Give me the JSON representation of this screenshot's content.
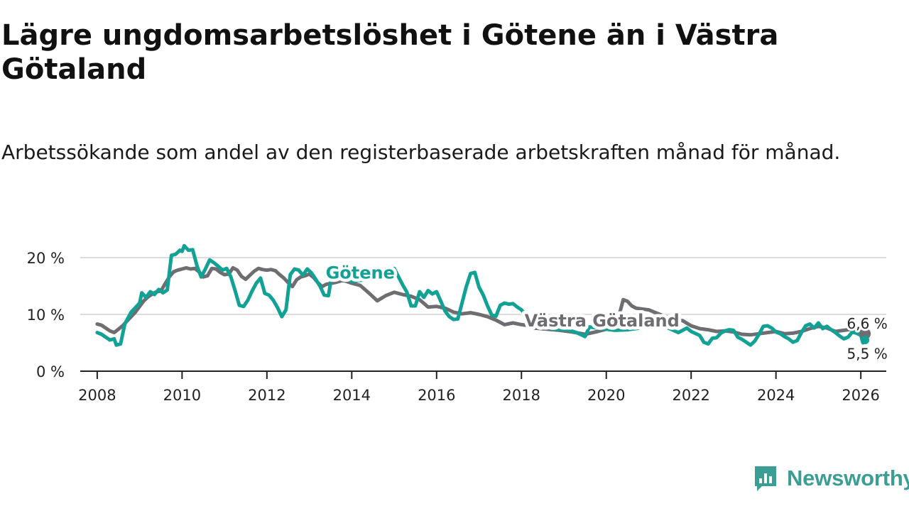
{
  "title": "Lägre ungdomsarbetslöshet i Götene än i Västra Götaland",
  "subtitle": "Arbetssökande som andel av den registerbaserade arbetskraften månad för månad.",
  "colors": {
    "gotene": "#12a195",
    "vastra": "#6d6d72",
    "grid": "#dcdcdc",
    "axis": "#222222",
    "logo": "#3a9e94"
  },
  "logo": {
    "text": "Newsworthy",
    "icon": "chart-bubble-icon"
  },
  "chart_data": {
    "type": "line",
    "title": "Lägre ungdomsarbetslöshet i Götene än i Västra Götaland",
    "xlabel": "",
    "ylabel": "",
    "xlim": [
      2007.6,
      2026.6
    ],
    "ylim": [
      0,
      20
    ],
    "x_ticks": [
      2008,
      2010,
      2012,
      2014,
      2016,
      2018,
      2020,
      2022,
      2024,
      2026
    ],
    "x_tick_labels": [
      "2008",
      "2010",
      "2012",
      "2014",
      "2016",
      "2018",
      "2020",
      "2022",
      "2024",
      "2026"
    ],
    "y_ticks": [
      0,
      10,
      20
    ],
    "y_tick_labels": [
      "0 %",
      "10 %",
      "20 %"
    ],
    "series": [
      {
        "name": "Västra Götaland",
        "label": "Västra Götaland",
        "end_label": "6,6 %",
        "points": [
          [
            2008.0,
            8.3
          ],
          [
            2008.1,
            8.1
          ],
          [
            2008.2,
            7.6
          ],
          [
            2008.3,
            7.1
          ],
          [
            2008.4,
            6.8
          ],
          [
            2008.5,
            7.4
          ],
          [
            2008.6,
            8.0
          ],
          [
            2008.7,
            8.8
          ],
          [
            2008.8,
            9.6
          ],
          [
            2008.9,
            10.4
          ],
          [
            2009.0,
            11.4
          ],
          [
            2009.1,
            12.4
          ],
          [
            2009.2,
            13.1
          ],
          [
            2009.3,
            13.6
          ],
          [
            2009.4,
            14.0
          ],
          [
            2009.5,
            14.1
          ],
          [
            2009.6,
            15.4
          ],
          [
            2009.7,
            16.6
          ],
          [
            2009.8,
            17.5
          ],
          [
            2009.9,
            17.8
          ],
          [
            2010.0,
            18.0
          ],
          [
            2010.1,
            18.2
          ],
          [
            2010.2,
            18.0
          ],
          [
            2010.3,
            18.1
          ],
          [
            2010.4,
            17.5
          ],
          [
            2010.5,
            16.6
          ],
          [
            2010.6,
            16.8
          ],
          [
            2010.7,
            18.1
          ],
          [
            2010.8,
            18.0
          ],
          [
            2010.9,
            17.4
          ],
          [
            2011.0,
            17.0
          ],
          [
            2011.1,
            17.1
          ],
          [
            2011.2,
            18.2
          ],
          [
            2011.3,
            17.8
          ],
          [
            2011.4,
            16.7
          ],
          [
            2011.5,
            16.2
          ],
          [
            2011.6,
            16.9
          ],
          [
            2011.7,
            17.6
          ],
          [
            2011.8,
            18.1
          ],
          [
            2011.9,
            17.9
          ],
          [
            2012.0,
            17.8
          ],
          [
            2012.1,
            17.9
          ],
          [
            2012.2,
            17.7
          ],
          [
            2012.3,
            17.0
          ],
          [
            2012.4,
            16.4
          ],
          [
            2012.5,
            15.6
          ],
          [
            2012.6,
            14.9
          ],
          [
            2012.7,
            16.1
          ],
          [
            2012.8,
            16.6
          ],
          [
            2012.9,
            16.8
          ],
          [
            2013.0,
            17.1
          ],
          [
            2013.1,
            16.5
          ],
          [
            2013.2,
            15.6
          ],
          [
            2013.3,
            14.9
          ],
          [
            2013.4,
            15.3
          ],
          [
            2013.6,
            15.6
          ],
          [
            2013.8,
            16.0
          ],
          [
            2014.0,
            15.5
          ],
          [
            2014.2,
            15.1
          ],
          [
            2014.4,
            13.8
          ],
          [
            2014.6,
            12.4
          ],
          [
            2014.8,
            13.3
          ],
          [
            2015.0,
            13.9
          ],
          [
            2015.2,
            13.5
          ],
          [
            2015.4,
            13.2
          ],
          [
            2015.6,
            12.6
          ],
          [
            2015.8,
            11.3
          ],
          [
            2016.0,
            11.4
          ],
          [
            2016.2,
            11.1
          ],
          [
            2016.4,
            10.4
          ],
          [
            2016.6,
            10.1
          ],
          [
            2016.8,
            10.3
          ],
          [
            2017.0,
            10.0
          ],
          [
            2017.2,
            9.6
          ],
          [
            2017.4,
            9.0
          ],
          [
            2017.6,
            8.2
          ],
          [
            2017.8,
            8.5
          ],
          [
            2018.0,
            8.2
          ],
          [
            2018.2,
            8.0
          ],
          [
            2018.3,
            7.6
          ],
          [
            2018.6,
            7.4
          ],
          [
            2018.9,
            7.2
          ],
          [
            2019.2,
            6.9
          ],
          [
            2019.5,
            6.5
          ],
          [
            2019.8,
            7.0
          ],
          [
            2020.1,
            7.6
          ],
          [
            2020.3,
            9.8
          ],
          [
            2020.4,
            12.6
          ],
          [
            2020.5,
            12.3
          ],
          [
            2020.6,
            11.5
          ],
          [
            2020.7,
            11.1
          ],
          [
            2020.9,
            10.9
          ],
          [
            2021.0,
            10.8
          ],
          [
            2021.2,
            10.2
          ],
          [
            2021.4,
            9.6
          ],
          [
            2021.6,
            9.2
          ],
          [
            2021.8,
            8.9
          ],
          [
            2022.0,
            8.0
          ],
          [
            2022.2,
            7.5
          ],
          [
            2022.4,
            7.3
          ],
          [
            2022.6,
            7.0
          ],
          [
            2022.8,
            7.1
          ],
          [
            2023.0,
            6.9
          ],
          [
            2023.2,
            6.5
          ],
          [
            2023.4,
            6.4
          ],
          [
            2023.6,
            6.6
          ],
          [
            2023.8,
            6.8
          ],
          [
            2024.0,
            7.0
          ],
          [
            2024.2,
            6.6
          ],
          [
            2024.4,
            6.7
          ],
          [
            2024.6,
            7.0
          ],
          [
            2024.8,
            7.5
          ],
          [
            2025.0,
            7.9
          ],
          [
            2025.2,
            7.6
          ],
          [
            2025.4,
            7.0
          ],
          [
            2025.6,
            7.2
          ],
          [
            2025.8,
            7.4
          ],
          [
            2026.0,
            7.0
          ],
          [
            2026.1,
            6.6
          ]
        ]
      },
      {
        "name": "Götene",
        "label": "Götene",
        "end_label": "5,5 %",
        "points": [
          [
            2008.0,
            6.8
          ],
          [
            2008.1,
            6.5
          ],
          [
            2008.2,
            6.0
          ],
          [
            2008.3,
            5.5
          ],
          [
            2008.4,
            5.7
          ],
          [
            2008.45,
            4.6
          ],
          [
            2008.55,
            4.8
          ],
          [
            2008.65,
            8.3
          ],
          [
            2008.8,
            10.4
          ],
          [
            2008.9,
            11.2
          ],
          [
            2009.0,
            12.0
          ],
          [
            2009.05,
            13.8
          ],
          [
            2009.15,
            13.0
          ],
          [
            2009.25,
            14.0
          ],
          [
            2009.35,
            13.5
          ],
          [
            2009.45,
            14.4
          ],
          [
            2009.55,
            13.8
          ],
          [
            2009.65,
            14.3
          ],
          [
            2009.75,
            20.4
          ],
          [
            2009.85,
            20.6
          ],
          [
            2009.95,
            21.3
          ],
          [
            2010.0,
            21.1
          ],
          [
            2010.05,
            22.1
          ],
          [
            2010.15,
            21.3
          ],
          [
            2010.25,
            21.4
          ],
          [
            2010.35,
            18.6
          ],
          [
            2010.45,
            16.6
          ],
          [
            2010.55,
            18.0
          ],
          [
            2010.65,
            19.6
          ],
          [
            2010.75,
            19.1
          ],
          [
            2010.85,
            18.5
          ],
          [
            2010.95,
            17.8
          ],
          [
            2011.05,
            18.1
          ],
          [
            2011.15,
            16.6
          ],
          [
            2011.25,
            14.2
          ],
          [
            2011.35,
            11.6
          ],
          [
            2011.45,
            11.4
          ],
          [
            2011.55,
            12.5
          ],
          [
            2011.65,
            14.1
          ],
          [
            2011.75,
            15.5
          ],
          [
            2011.85,
            16.4
          ],
          [
            2011.95,
            13.7
          ],
          [
            2012.05,
            13.4
          ],
          [
            2012.15,
            12.5
          ],
          [
            2012.25,
            11.2
          ],
          [
            2012.35,
            9.6
          ],
          [
            2012.45,
            10.8
          ],
          [
            2012.55,
            17.0
          ],
          [
            2012.65,
            18.0
          ],
          [
            2012.75,
            17.8
          ],
          [
            2012.85,
            16.9
          ],
          [
            2012.95,
            18.0
          ],
          [
            2013.05,
            17.3
          ],
          [
            2013.15,
            16.2
          ],
          [
            2013.25,
            15.0
          ],
          [
            2013.35,
            13.4
          ],
          [
            2013.45,
            13.3
          ],
          [
            2013.55,
            17.8
          ],
          [
            2014.0,
            15.8
          ],
          [
            2014.5,
            16.3
          ],
          [
            2015.0,
            18.1
          ],
          [
            2015.2,
            15.2
          ],
          [
            2015.3,
            13.9
          ],
          [
            2015.4,
            11.5
          ],
          [
            2015.5,
            11.5
          ],
          [
            2015.6,
            14.0
          ],
          [
            2015.7,
            13.0
          ],
          [
            2015.8,
            14.2
          ],
          [
            2015.9,
            13.6
          ],
          [
            2016.0,
            14.0
          ],
          [
            2016.1,
            12.3
          ],
          [
            2016.2,
            10.6
          ],
          [
            2016.3,
            9.6
          ],
          [
            2016.4,
            9.1
          ],
          [
            2016.5,
            9.2
          ],
          [
            2016.6,
            12.0
          ],
          [
            2016.7,
            14.9
          ],
          [
            2016.8,
            17.2
          ],
          [
            2016.9,
            17.4
          ],
          [
            2017.0,
            14.8
          ],
          [
            2017.1,
            13.4
          ],
          [
            2017.2,
            11.5
          ],
          [
            2017.3,
            9.9
          ],
          [
            2017.4,
            9.7
          ],
          [
            2017.5,
            11.6
          ],
          [
            2017.6,
            12.0
          ],
          [
            2017.7,
            11.8
          ],
          [
            2017.8,
            11.9
          ],
          [
            2017.9,
            11.3
          ],
          [
            2018.0,
            10.8
          ],
          [
            2018.2,
            9.0
          ],
          [
            2018.5,
            7.8
          ],
          [
            2018.8,
            7.4
          ],
          [
            2019.1,
            7.3
          ],
          [
            2019.3,
            6.8
          ],
          [
            2019.5,
            6.1
          ],
          [
            2019.6,
            7.8
          ],
          [
            2019.9,
            7.5
          ],
          [
            2020.2,
            7.2
          ],
          [
            2020.5,
            7.3
          ],
          [
            2020.8,
            7.6
          ],
          [
            2021.1,
            8.2
          ],
          [
            2021.4,
            7.8
          ],
          [
            2021.7,
            6.8
          ],
          [
            2021.9,
            7.6
          ],
          [
            2022.0,
            7.0
          ],
          [
            2022.2,
            6.3
          ],
          [
            2022.3,
            5.1
          ],
          [
            2022.4,
            4.8
          ],
          [
            2022.5,
            5.8
          ],
          [
            2022.6,
            5.9
          ],
          [
            2022.7,
            6.7
          ],
          [
            2022.8,
            7.1
          ],
          [
            2022.9,
            7.3
          ],
          [
            2023.0,
            7.2
          ],
          [
            2023.1,
            6.0
          ],
          [
            2023.2,
            5.6
          ],
          [
            2023.3,
            5.1
          ],
          [
            2023.4,
            4.6
          ],
          [
            2023.5,
            5.3
          ],
          [
            2023.6,
            6.5
          ],
          [
            2023.7,
            7.9
          ],
          [
            2023.8,
            8.0
          ],
          [
            2023.9,
            7.6
          ],
          [
            2024.0,
            6.9
          ],
          [
            2024.1,
            6.6
          ],
          [
            2024.2,
            6.1
          ],
          [
            2024.3,
            5.7
          ],
          [
            2024.4,
            5.1
          ],
          [
            2024.5,
            5.4
          ],
          [
            2024.6,
            6.8
          ],
          [
            2024.7,
            8.0
          ],
          [
            2024.8,
            8.3
          ],
          [
            2024.9,
            7.6
          ],
          [
            2025.0,
            8.5
          ],
          [
            2025.1,
            7.5
          ],
          [
            2025.2,
            7.9
          ],
          [
            2025.3,
            7.3
          ],
          [
            2025.4,
            6.8
          ],
          [
            2025.5,
            6.2
          ],
          [
            2025.6,
            5.7
          ],
          [
            2025.7,
            6.0
          ],
          [
            2025.8,
            6.9
          ],
          [
            2025.9,
            6.7
          ],
          [
            2026.0,
            6.3
          ],
          [
            2026.05,
            5.0
          ],
          [
            2026.1,
            5.5
          ]
        ]
      }
    ]
  }
}
